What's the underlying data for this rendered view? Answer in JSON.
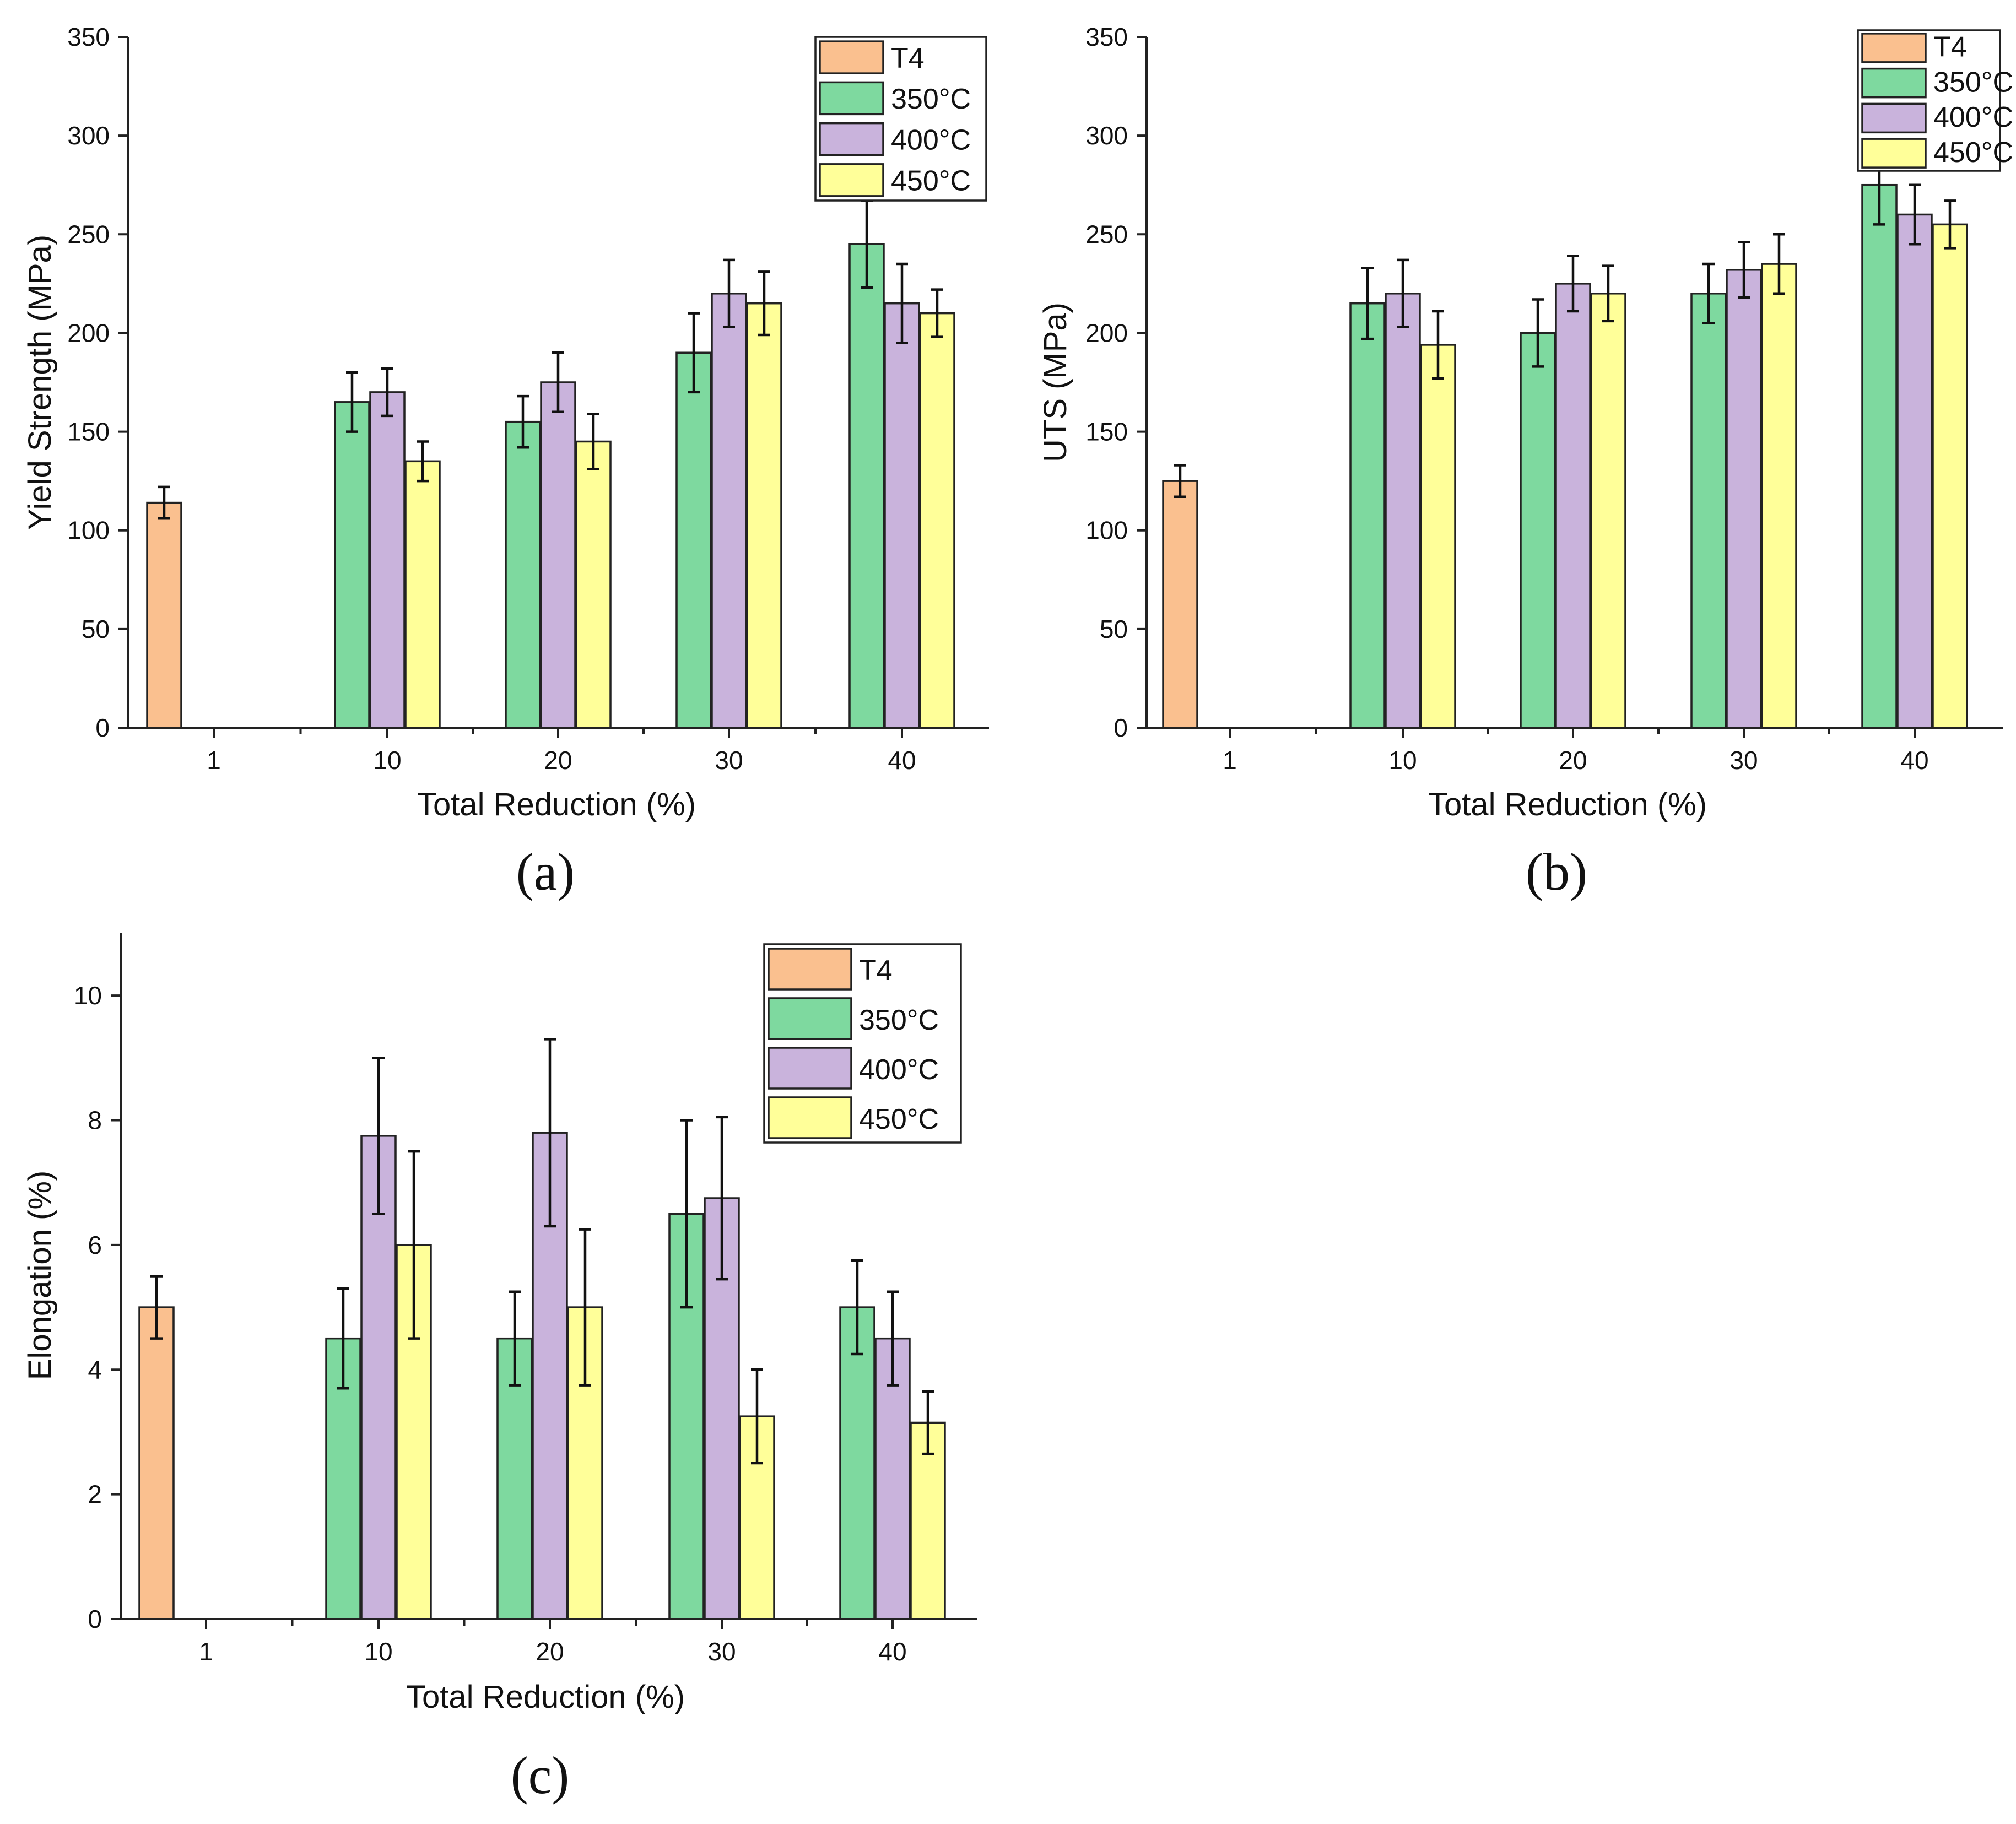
{
  "colors": {
    "T4": "#FAC08F",
    "350C": "#7ED99F",
    "400C": "#C9B3DC",
    "450C": "#FFFF99"
  },
  "chart_data": [
    {
      "id": "a",
      "type": "bar",
      "panel_label": "(a)",
      "xlabel": "Total Reduction (%)",
      "ylabel": "Yield Strength (MPa)",
      "categories": [
        "1",
        "10",
        "20",
        "30",
        "40"
      ],
      "ylim": [
        0,
        350
      ],
      "yticks": [
        0,
        50,
        100,
        150,
        200,
        250,
        300,
        350
      ],
      "legend_position": "top-right",
      "series": [
        {
          "key": "T4",
          "name": "T4",
          "values": [
            114,
            null,
            null,
            null,
            null
          ],
          "errors": [
            8,
            null,
            null,
            null,
            null
          ]
        },
        {
          "key": "350C",
          "name": "350°C",
          "values": [
            null,
            165,
            155,
            190,
            245
          ],
          "errors": [
            null,
            15,
            13,
            20,
            22
          ]
        },
        {
          "key": "400C",
          "name": "400°C",
          "values": [
            null,
            170,
            175,
            220,
            215
          ],
          "errors": [
            null,
            12,
            15,
            17,
            20
          ]
        },
        {
          "key": "450C",
          "name": "450°C",
          "values": [
            null,
            135,
            145,
            215,
            210
          ],
          "errors": [
            null,
            10,
            14,
            16,
            12
          ]
        }
      ]
    },
    {
      "id": "b",
      "type": "bar",
      "panel_label": "(b)",
      "xlabel": "Total Reduction (%)",
      "ylabel": "UTS (MPa)",
      "categories": [
        "1",
        "10",
        "20",
        "30",
        "40"
      ],
      "ylim": [
        0,
        350
      ],
      "yticks": [
        0,
        50,
        100,
        150,
        200,
        250,
        300,
        350
      ],
      "legend_position": "top-right",
      "series": [
        {
          "key": "T4",
          "name": "T4",
          "values": [
            125,
            null,
            null,
            null,
            null
          ],
          "errors": [
            8,
            null,
            null,
            null,
            null
          ]
        },
        {
          "key": "350C",
          "name": "350°C",
          "values": [
            null,
            215,
            200,
            220,
            275
          ],
          "errors": [
            null,
            18,
            17,
            15,
            20
          ]
        },
        {
          "key": "400C",
          "name": "400°C",
          "values": [
            null,
            220,
            225,
            232,
            260
          ],
          "errors": [
            null,
            17,
            14,
            14,
            15
          ]
        },
        {
          "key": "450C",
          "name": "450°C",
          "values": [
            null,
            194,
            220,
            235,
            255
          ],
          "errors": [
            null,
            17,
            14,
            15,
            12
          ]
        }
      ]
    },
    {
      "id": "c",
      "type": "bar",
      "panel_label": "(c)",
      "xlabel": "Total Reduction (%)",
      "ylabel": "Elongation (%)",
      "categories": [
        "1",
        "10",
        "20",
        "30",
        "40"
      ],
      "ylim": [
        0,
        11
      ],
      "yticks": [
        0,
        2,
        4,
        6,
        8,
        10
      ],
      "legend_position": "top-right",
      "series": [
        {
          "key": "T4",
          "name": "T4",
          "values": [
            5.0,
            null,
            null,
            null,
            null
          ],
          "errors": [
            0.5,
            null,
            null,
            null,
            null
          ]
        },
        {
          "key": "350C",
          "name": "350°C",
          "values": [
            null,
            4.5,
            4.5,
            6.5,
            5.0
          ],
          "errors": [
            null,
            0.8,
            0.75,
            1.5,
            0.75
          ]
        },
        {
          "key": "400C",
          "name": "400°C",
          "values": [
            null,
            7.75,
            7.8,
            6.75,
            4.5
          ],
          "errors": [
            null,
            1.25,
            1.5,
            1.3,
            0.75
          ]
        },
        {
          "key": "450C",
          "name": "450°C",
          "values": [
            null,
            6.0,
            5.0,
            3.25,
            3.15
          ],
          "errors": [
            null,
            1.5,
            1.25,
            0.75,
            0.5
          ]
        }
      ]
    }
  ]
}
